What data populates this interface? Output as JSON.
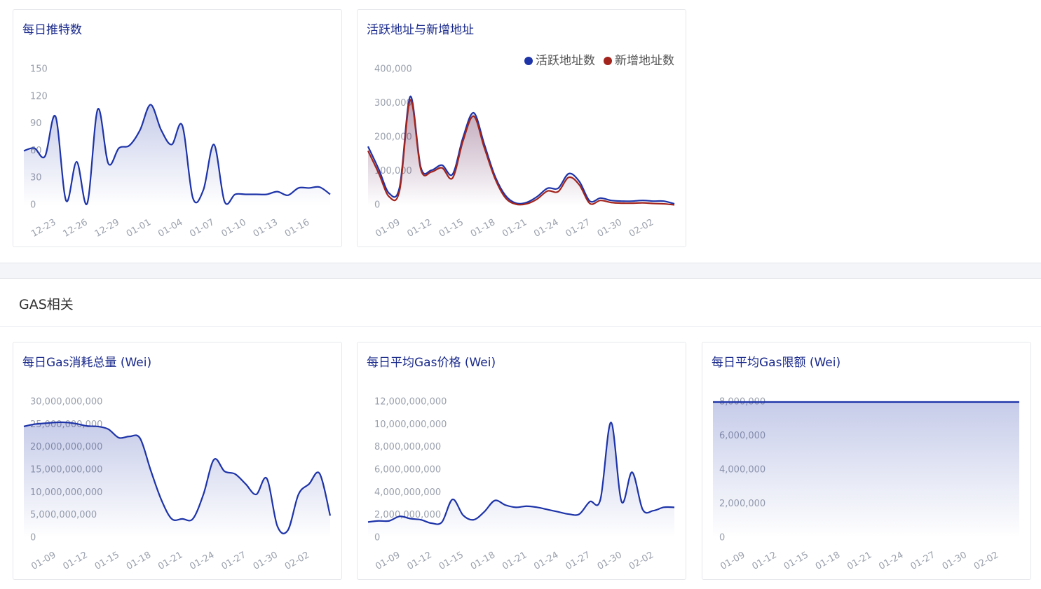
{
  "section_title": "GAS相关",
  "chart_data": [
    {
      "type": "line",
      "title": "每日推特数",
      "categories": [
        null,
        null,
        "12-23",
        null,
        null,
        "12-26",
        null,
        null,
        "12-29",
        null,
        null,
        "01-01",
        null,
        null,
        "01-04",
        null,
        null,
        "01-07",
        null,
        null,
        "01-10",
        null,
        null,
        "01-13",
        null,
        null,
        "01-16",
        null,
        null,
        null
      ],
      "series": [
        {
          "color": "#1d33a8",
          "values": [
            60,
            63,
            54,
            98,
            5,
            48,
            2,
            106,
            46,
            63,
            66,
            83,
            111,
            83,
            67,
            88,
            8,
            17,
            67,
            4,
            12,
            12,
            12,
            12,
            15,
            11,
            19,
            19,
            20,
            12
          ]
        }
      ],
      "ylim": [
        0,
        150
      ],
      "yticks": [
        0,
        30,
        60,
        90,
        120,
        150
      ]
    },
    {
      "type": "line",
      "title": "活跃地址与新增地址",
      "legend": "top-right",
      "categories": [
        null,
        null,
        "01-09",
        null,
        null,
        "01-12",
        null,
        null,
        "01-15",
        null,
        null,
        "01-18",
        null,
        null,
        "01-21",
        null,
        null,
        "01-24",
        null,
        null,
        "01-27",
        null,
        null,
        "01-30",
        null,
        null,
        "02-02",
        null,
        null,
        null
      ],
      "series": [
        {
          "name": "活跃地址数",
          "color": "#1d33a8",
          "values": [
            173000,
            107000,
            35000,
            55000,
            320000,
            111000,
            103000,
            118000,
            91000,
            200000,
            272000,
            180000,
            87000,
            29000,
            6000,
            8000,
            25000,
            50000,
            50000,
            93000,
            70000,
            12000,
            21000,
            14000,
            12000,
            12000,
            14000,
            12000,
            12000,
            4000
          ]
        },
        {
          "name": "新增地址数",
          "color": "#a3241c",
          "values": [
            160000,
            95000,
            25000,
            45000,
            310000,
            105000,
            98000,
            110000,
            80000,
            190000,
            262000,
            170000,
            80000,
            22000,
            3000,
            4000,
            18000,
            42000,
            40000,
            82000,
            60000,
            5000,
            14000,
            8000,
            6000,
            6000,
            7000,
            5000,
            4000,
            1000
          ]
        }
      ],
      "ylim": [
        0,
        400000
      ],
      "yticks": [
        0,
        {
          "value": 100000,
          "label": "100,000"
        },
        {
          "value": 200000,
          "label": "200,000"
        },
        {
          "value": 300000,
          "label": "300,000"
        },
        {
          "value": 400000,
          "label": "400,000"
        }
      ]
    },
    {
      "type": "line",
      "title": "每日Gas消耗总量 (Wei)",
      "categories": [
        null,
        null,
        "01-09",
        null,
        null,
        "01-12",
        null,
        null,
        "01-15",
        null,
        null,
        "01-18",
        null,
        null,
        "01-21",
        null,
        null,
        "01-24",
        null,
        null,
        "01-27",
        null,
        null,
        "01-30",
        null,
        null,
        "02-02",
        null,
        null,
        null
      ],
      "series": [
        {
          "color": "#1d33a8",
          "values": [
            24600000000,
            25100000000,
            25300000000,
            25500000000,
            25500000000,
            25200000000,
            24700000000,
            24600000000,
            24000000000,
            22100000000,
            22400000000,
            22000000000,
            15000000000,
            8500000000,
            4200000000,
            4200000000,
            4200000000,
            9600000000,
            17300000000,
            14700000000,
            14100000000,
            11900000000,
            9600000000,
            13100000000,
            2600000000,
            1700000000,
            9600000000,
            11900000000,
            14200000000,
            4900000000
          ]
        }
      ],
      "ylim": [
        0,
        30000000000
      ],
      "yticks": [
        0,
        {
          "value": 5000000000,
          "label": "5,000,000,000"
        },
        {
          "value": 10000000000,
          "label": "10,000,000,000"
        },
        {
          "value": 15000000000,
          "label": "15,000,000,000"
        },
        {
          "value": 20000000000,
          "label": "20,000,000,000"
        },
        {
          "value": 25000000000,
          "label": "25,000,000,000"
        },
        {
          "value": 30000000000,
          "label": "30,000,000,000"
        }
      ]
    },
    {
      "type": "line",
      "title": "每日平均Gas价格 (Wei)",
      "categories": [
        null,
        null,
        "01-09",
        null,
        null,
        "01-12",
        null,
        null,
        "01-15",
        null,
        null,
        "01-18",
        null,
        null,
        "01-21",
        null,
        null,
        "01-24",
        null,
        null,
        "01-27",
        null,
        null,
        "01-30",
        null,
        null,
        "02-02",
        null,
        null,
        null
      ],
      "series": [
        {
          "color": "#1d33a8",
          "values": [
            1400000000,
            1500000000,
            1500000000,
            1900000000,
            1700000000,
            1600000000,
            1300000000,
            1400000000,
            3400000000,
            2000000000,
            1600000000,
            2300000000,
            3300000000,
            2900000000,
            2700000000,
            2800000000,
            2700000000,
            2500000000,
            2300000000,
            2100000000,
            2100000000,
            3200000000,
            3400000000,
            10200000000,
            3200000000,
            5800000000,
            2500000000,
            2400000000,
            2700000000,
            2700000000
          ]
        }
      ],
      "ylim": [
        0,
        12000000000
      ],
      "yticks": [
        0,
        {
          "value": 2000000000,
          "label": "2,000,000,000"
        },
        {
          "value": 4000000000,
          "label": "4,000,000,000"
        },
        {
          "value": 6000000000,
          "label": "6,000,000,000"
        },
        {
          "value": 8000000000,
          "label": "8,000,000,000"
        },
        {
          "value": 10000000000,
          "label": "10,000,000,000"
        },
        {
          "value": 12000000000,
          "label": "12,000,000,000"
        }
      ]
    },
    {
      "type": "line",
      "title": "每日平均Gas限额 (Wei)",
      "categories": [
        null,
        null,
        "01-09",
        null,
        null,
        "01-12",
        null,
        null,
        "01-15",
        null,
        null,
        "01-18",
        null,
        null,
        "01-21",
        null,
        null,
        "01-24",
        null,
        null,
        "01-27",
        null,
        null,
        "01-30",
        null,
        null,
        "02-02",
        null,
        null,
        null
      ],
      "series": [
        {
          "color": "#1d33a8",
          "values": [
            8000000,
            8000000,
            8000000,
            8000000,
            8000000,
            8000000,
            8000000,
            8000000,
            8000000,
            8000000,
            8000000,
            8000000,
            8000000,
            8000000,
            8000000,
            8000000,
            8000000,
            8000000,
            8000000,
            8000000,
            8000000,
            8000000,
            8000000,
            8000000,
            8000000,
            8000000,
            8000000,
            8000000,
            8000000,
            8000000
          ]
        }
      ],
      "ylim": [
        0,
        8000000
      ],
      "yticks": [
        0,
        {
          "value": 2000000,
          "label": "2,000,000"
        },
        {
          "value": 4000000,
          "label": "4,000,000"
        },
        {
          "value": 6000000,
          "label": "6,000,000"
        },
        {
          "value": 8000000,
          "label": "8,000,000"
        }
      ]
    }
  ]
}
